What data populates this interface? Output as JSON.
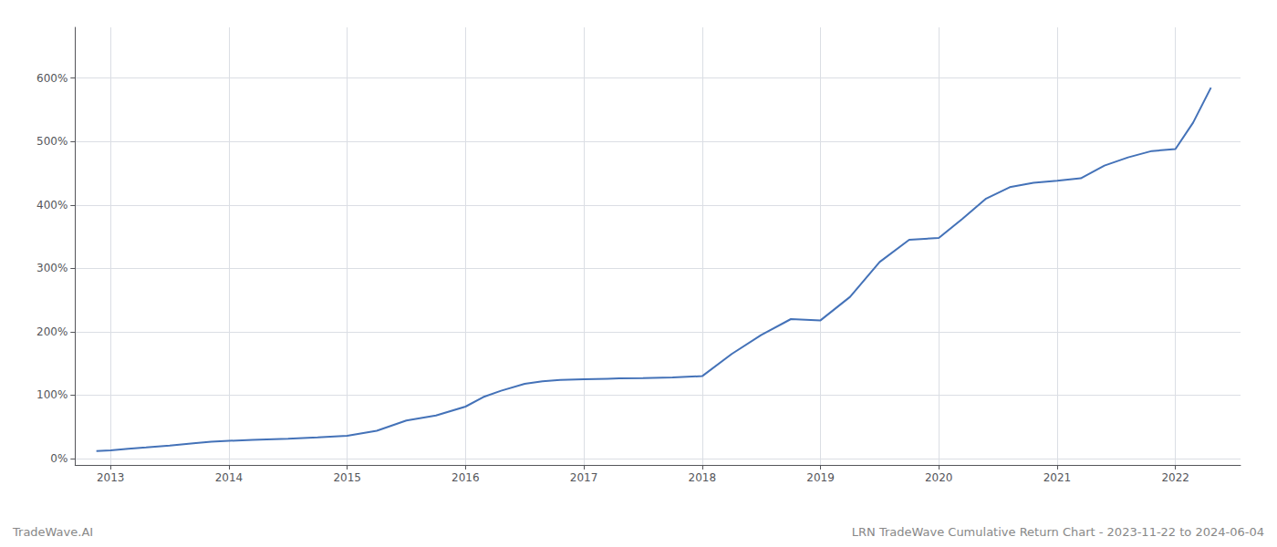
{
  "chart_data": {
    "type": "line",
    "x": [
      2012.88,
      2013.0,
      2013.15,
      2013.3,
      2013.5,
      2013.7,
      2013.85,
      2014.0,
      2014.2,
      2014.5,
      2014.75,
      2015.0,
      2015.25,
      2015.5,
      2015.75,
      2016.0,
      2016.15,
      2016.3,
      2016.5,
      2016.65,
      2016.8,
      2017.0,
      2017.1,
      2017.2,
      2017.3,
      2017.5,
      2017.75,
      2018.0,
      2018.25,
      2018.5,
      2018.75,
      2019.0,
      2019.25,
      2019.5,
      2019.75,
      2020.0,
      2020.2,
      2020.4,
      2020.6,
      2020.8,
      2021.0,
      2021.2,
      2021.4,
      2021.6,
      2021.8,
      2022.0,
      2022.15,
      2022.3
    ],
    "values": [
      0.12,
      0.13,
      0.155,
      0.175,
      0.205,
      0.24,
      0.265,
      0.28,
      0.295,
      0.315,
      0.335,
      0.36,
      0.44,
      0.6,
      0.68,
      0.82,
      0.97,
      1.07,
      1.18,
      1.22,
      1.24,
      1.25,
      1.255,
      1.26,
      1.265,
      1.27,
      1.28,
      1.3,
      1.65,
      1.95,
      2.2,
      2.18,
      2.55,
      3.1,
      3.45,
      3.48,
      3.78,
      4.1,
      4.28,
      4.35,
      4.38,
      4.42,
      4.62,
      4.75,
      4.85,
      4.88,
      5.3,
      5.85
    ],
    "color": "#4472b8",
    "xlim": [
      2012.7,
      2022.55
    ],
    "xticks": [
      2013,
      2014,
      2015,
      2016,
      2017,
      2018,
      2019,
      2020,
      2021,
      2022
    ],
    "ylim": [
      -0.1,
      6.8
    ],
    "yticks": [
      {
        "value": 0.0,
        "label": "0%"
      },
      {
        "value": 1.0,
        "label": "100%"
      },
      {
        "value": 2.0,
        "label": "200%"
      },
      {
        "value": 3.0,
        "label": "300%"
      },
      {
        "value": 4.0,
        "label": "400%"
      },
      {
        "value": 5.0,
        "label": "500%"
      },
      {
        "value": 6.0,
        "label": "600%"
      }
    ],
    "grid": true,
    "annotations": [
      "TradeWave.AI",
      "LRN TradeWave Cumulative Return Chart - 2023-11-22 to 2024-06-04"
    ]
  }
}
